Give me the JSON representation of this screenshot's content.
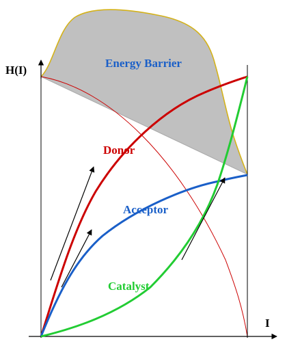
{
  "axes": {
    "y_label": "H(I)",
    "x_label": "I"
  },
  "labels": {
    "energy_barrier": "Energy Barrier",
    "donor": "Donor",
    "acceptor": "Acceptor",
    "catalyst": "Catalyst"
  },
  "colors": {
    "barrier_fill": "#c0c0c0",
    "barrier_outline": "#d4b21a",
    "donor": "#cc0000",
    "acceptor": "#1a5fc8",
    "catalyst": "#22cc33",
    "energy_barrier_text": "#1a5fc8",
    "axis": "#000000"
  }
}
